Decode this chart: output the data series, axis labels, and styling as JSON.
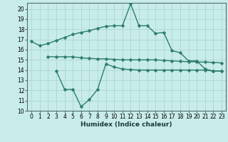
{
  "line1_x": [
    0,
    1,
    2,
    3,
    4,
    5,
    6,
    7,
    8,
    9,
    10,
    11,
    12,
    13,
    14,
    15,
    16,
    17,
    18,
    19,
    20,
    21,
    22,
    23
  ],
  "line1_y": [
    16.8,
    16.4,
    16.6,
    16.9,
    17.2,
    17.5,
    17.7,
    17.85,
    18.1,
    18.3,
    18.35,
    18.35,
    20.5,
    18.35,
    18.35,
    17.6,
    17.7,
    15.9,
    15.7,
    14.9,
    14.9,
    14.1,
    13.9,
    13.9
  ],
  "line2_x": [
    2,
    3,
    4,
    5,
    6,
    7,
    8,
    9,
    10,
    11,
    12,
    13,
    14,
    15,
    16,
    17,
    18,
    19,
    20,
    21,
    22,
    23
  ],
  "line2_y": [
    15.3,
    15.3,
    15.3,
    15.3,
    15.2,
    15.15,
    15.1,
    15.1,
    15.05,
    15.0,
    15.0,
    15.0,
    15.0,
    15.0,
    14.95,
    14.9,
    14.85,
    14.82,
    14.8,
    14.78,
    14.75,
    14.7
  ],
  "line3_x": [
    3,
    4,
    5,
    6,
    7,
    8,
    9,
    10,
    11,
    12,
    13,
    14,
    15,
    16,
    17,
    18,
    19,
    20,
    21,
    22,
    23
  ],
  "line3_y": [
    13.9,
    12.1,
    12.1,
    10.4,
    11.1,
    12.1,
    14.6,
    14.3,
    14.1,
    14.05,
    14.0,
    14.0,
    14.0,
    14.0,
    14.0,
    14.0,
    14.0,
    14.0,
    14.0,
    13.9,
    13.9
  ],
  "line_color": "#2d7d6e",
  "bg_color": "#c8ecea",
  "grid_color": "#b0d8d5",
  "xlabel": "Humidex (Indice chaleur)",
  "ylim": [
    10,
    20.6
  ],
  "xlim": [
    -0.5,
    23.5
  ],
  "yticks": [
    10,
    11,
    12,
    13,
    14,
    15,
    16,
    17,
    18,
    19,
    20
  ],
  "xticks": [
    0,
    1,
    2,
    3,
    4,
    5,
    6,
    7,
    8,
    9,
    10,
    11,
    12,
    13,
    14,
    15,
    16,
    17,
    18,
    19,
    20,
    21,
    22,
    23
  ],
  "markersize": 2.5,
  "linewidth": 1.0,
  "tick_fontsize": 5.5,
  "xlabel_fontsize": 6.5
}
